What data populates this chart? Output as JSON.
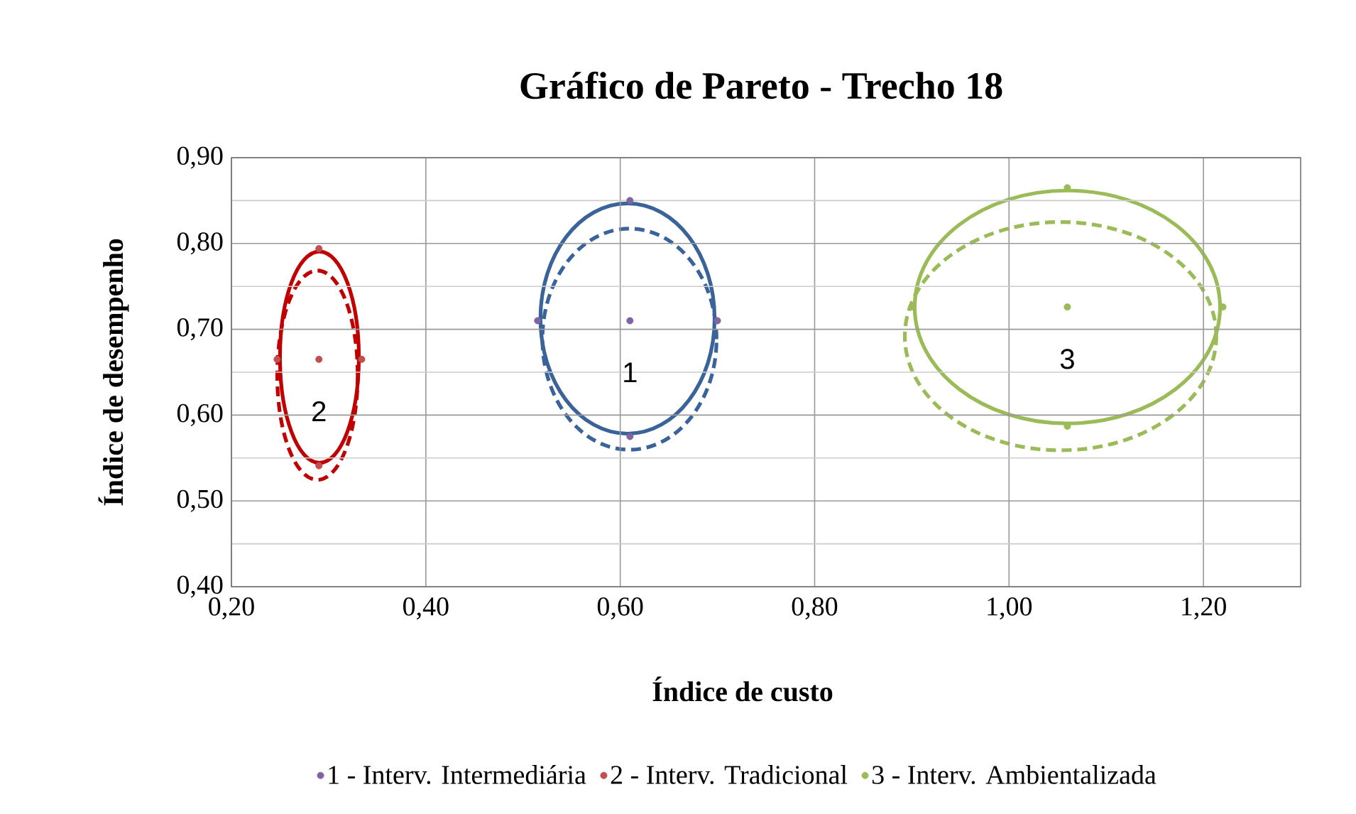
{
  "chart_data": {
    "type": "scatter",
    "title": "Gráfico de Pareto - Trecho 18",
    "xlabel": "Índice de custo",
    "ylabel": "Índice de desempenho",
    "xlim": [
      0.2,
      1.3
    ],
    "ylim": [
      0.4,
      0.9
    ],
    "xticks": [
      {
        "value": 0.2,
        "label": "0,20"
      },
      {
        "value": 0.4,
        "label": "0,40"
      },
      {
        "value": 0.6,
        "label": "0,60"
      },
      {
        "value": 0.8,
        "label": "0,80"
      },
      {
        "value": 1.0,
        "label": "1,00"
      },
      {
        "value": 1.2,
        "label": "1,20"
      }
    ],
    "yticks": [
      {
        "value": 0.4,
        "label": "0,40"
      },
      {
        "value": 0.5,
        "label": "0,50"
      },
      {
        "value": 0.6,
        "label": "0,60"
      },
      {
        "value": 0.7,
        "label": "0,70"
      },
      {
        "value": 0.8,
        "label": "0,80"
      },
      {
        "value": 0.9,
        "label": "0,90"
      }
    ],
    "grid": true,
    "legend": "bottom",
    "marker": "circle",
    "series": [
      {
        "name": "1 - Interv. Intermediária",
        "color": "#8064a2",
        "x": [
          0.61,
          0.61,
          0.61,
          0.515,
          0.7
        ],
        "values": [
          0.71,
          0.85,
          0.575,
          0.71,
          0.71
        ]
      },
      {
        "name": "2 - Interv. Tradicional",
        "color": "#c0504d",
        "x": [
          0.29,
          0.29,
          0.29,
          0.247,
          0.334
        ],
        "values": [
          0.665,
          0.794,
          0.541,
          0.665,
          0.665
        ]
      },
      {
        "name": "3 - Interv. Ambientalizada",
        "color": "#9bbb59",
        "x": [
          1.06,
          1.06,
          1.06,
          0.9,
          1.22
        ],
        "values": [
          0.726,
          0.865,
          0.587,
          0.726,
          0.726
        ]
      }
    ],
    "annotations": [
      "1",
      "2",
      "3"
    ]
  }
}
